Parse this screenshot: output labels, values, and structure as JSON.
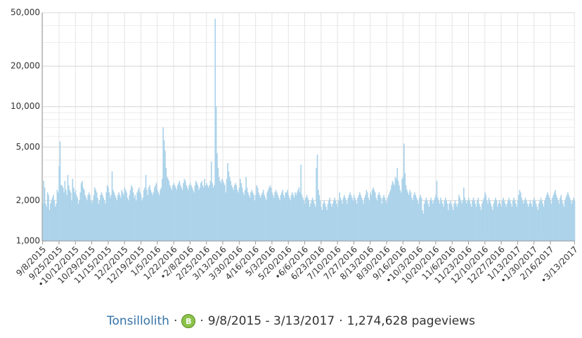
{
  "chart_data": {
    "type": "bar",
    "color": "#acd3ea",
    "log_scale": true,
    "grid": true,
    "ylim": [
      1000,
      50000
    ],
    "yticks": [
      {
        "value": 1000,
        "label": "1,000"
      },
      {
        "value": 2000,
        "label": "2,000"
      },
      {
        "value": 5000,
        "label": "5,000"
      },
      {
        "value": 10000,
        "label": "10,000"
      },
      {
        "value": 20000,
        "label": "20,000"
      },
      {
        "value": 50000,
        "label": "50,000"
      }
    ],
    "categories": [
      "9/8/2015",
      null,
      null,
      null,
      null,
      null,
      null,
      null,
      null,
      null,
      null,
      null,
      null,
      null,
      null,
      null,
      null,
      "9/25/2015",
      null,
      null,
      null,
      null,
      null,
      null,
      null,
      null,
      null,
      null,
      null,
      null,
      null,
      null,
      null,
      null,
      "•10/12/2015",
      null,
      null,
      null,
      null,
      null,
      null,
      null,
      null,
      null,
      null,
      null,
      null,
      null,
      null,
      null,
      null,
      "10/29/2015",
      null,
      null,
      null,
      null,
      null,
      null,
      null,
      null,
      null,
      null,
      null,
      null,
      null,
      null,
      null,
      null,
      "11/15/2015",
      null,
      null,
      null,
      null,
      null,
      null,
      null,
      null,
      null,
      null,
      null,
      null,
      null,
      null,
      null,
      null,
      "12/2/2015",
      null,
      null,
      null,
      null,
      null,
      null,
      null,
      null,
      null,
      null,
      null,
      null,
      null,
      null,
      null,
      null,
      "12/19/2015",
      null,
      null,
      null,
      null,
      null,
      null,
      null,
      null,
      null,
      null,
      null,
      null,
      null,
      null,
      null,
      null,
      "1/5/2016",
      null,
      null,
      null,
      null,
      null,
      null,
      null,
      null,
      null,
      null,
      null,
      null,
      null,
      null,
      null,
      null,
      "1/22/2016",
      null,
      null,
      null,
      null,
      null,
      null,
      null,
      null,
      null,
      null,
      null,
      null,
      null,
      null,
      null,
      null,
      "•2/8/2016",
      null,
      null,
      null,
      null,
      null,
      null,
      null,
      null,
      null,
      null,
      null,
      null,
      null,
      null,
      null,
      null,
      "2/25/2016",
      null,
      null,
      null,
      null,
      null,
      null,
      null,
      null,
      null,
      null,
      null,
      null,
      null,
      null,
      null,
      null,
      "3/13/2016",
      null,
      null,
      null,
      null,
      null,
      null,
      null,
      null,
      null,
      null,
      null,
      null,
      null,
      null,
      null,
      null,
      "3/30/2016",
      null,
      null,
      null,
      null,
      null,
      null,
      null,
      null,
      null,
      null,
      null,
      null,
      null,
      null,
      null,
      null,
      "4/16/2016",
      null,
      null,
      null,
      null,
      null,
      null,
      null,
      null,
      null,
      null,
      null,
      null,
      null,
      null,
      null,
      null,
      "5/3/2016",
      null,
      null,
      null,
      null,
      null,
      null,
      null,
      null,
      null,
      null,
      null,
      null,
      null,
      null,
      null,
      null,
      "5/20/2016",
      null,
      null,
      null,
      null,
      null,
      null,
      null,
      null,
      null,
      null,
      null,
      null,
      null,
      null,
      null,
      null,
      "•6/6/2016",
      null,
      null,
      null,
      null,
      null,
      null,
      null,
      null,
      null,
      null,
      null,
      null,
      null,
      null,
      null,
      null,
      "6/23/2016",
      null,
      null,
      null,
      null,
      null,
      null,
      null,
      null,
      null,
      null,
      null,
      null,
      null,
      null,
      null,
      null,
      "7/10/2016",
      null,
      null,
      null,
      null,
      null,
      null,
      null,
      null,
      null,
      null,
      null,
      null,
      null,
      null,
      null,
      null,
      "7/27/2016",
      null,
      null,
      null,
      null,
      null,
      null,
      null,
      null,
      null,
      null,
      null,
      null,
      null,
      null,
      null,
      null,
      "8/13/2016",
      null,
      null,
      null,
      null,
      null,
      null,
      null,
      null,
      null,
      null,
      null,
      null,
      null,
      null,
      null,
      null,
      "8/30/2016",
      null,
      null,
      null,
      null,
      null,
      null,
      null,
      null,
      null,
      null,
      null,
      null,
      null,
      null,
      null,
      null,
      "9/16/2016",
      null,
      null,
      null,
      null,
      null,
      null,
      null,
      null,
      null,
      null,
      null,
      null,
      null,
      null,
      null,
      null,
      "•10/3/2016",
      null,
      null,
      null,
      null,
      null,
      null,
      null,
      null,
      null,
      null,
      null,
      null,
      null,
      null,
      null,
      null,
      "10/20/2016",
      null,
      null,
      null,
      null,
      null,
      null,
      null,
      null,
      null,
      null,
      null,
      null,
      null,
      null,
      null,
      null,
      "11/6/2016",
      null,
      null,
      null,
      null,
      null,
      null,
      null,
      null,
      null,
      null,
      null,
      null,
      null,
      null,
      null,
      null,
      "11/23/2016",
      null,
      null,
      null,
      null,
      null,
      null,
      null,
      null,
      null,
      null,
      null,
      null,
      null,
      null,
      null,
      null,
      "12/10/2016",
      null,
      null,
      null,
      null,
      null,
      null,
      null,
      null,
      null,
      null,
      null,
      null,
      null,
      null,
      null,
      null,
      "12/27/2016",
      null,
      null,
      null,
      null,
      null,
      null,
      null,
      null,
      null,
      null,
      null,
      null,
      null,
      null,
      null,
      null,
      "1/13/2017",
      null,
      null,
      null,
      null,
      null,
      null,
      null,
      null,
      null,
      null,
      null,
      null,
      null,
      null,
      null,
      null,
      "•1/30/2017",
      null,
      null,
      null,
      null,
      null,
      null,
      null,
      null,
      null,
      null,
      null,
      null,
      null,
      null,
      null,
      null,
      "2/16/2017",
      null,
      null,
      null,
      null,
      null,
      null,
      null,
      null,
      null,
      null,
      null,
      null,
      null,
      null,
      null,
      null,
      null,
      null,
      null,
      null,
      null,
      null,
      null,
      null,
      "•3/13/2017"
    ],
    "values": [
      1900,
      2800,
      2500,
      1900,
      1800,
      2300,
      2200,
      1700,
      1900,
      2000,
      2100,
      2200,
      2000,
      1800,
      1900,
      2400,
      2300,
      3600,
      5500,
      2600,
      2600,
      2500,
      2300,
      2800,
      2400,
      2200,
      3100,
      2600,
      2400,
      2300,
      2000,
      2900,
      2500,
      2300,
      2400,
      2200,
      2100,
      1900,
      2000,
      2300,
      2700,
      2800,
      2500,
      2400,
      2200,
      2100,
      2000,
      2200,
      2300,
      2200,
      2000,
      1900,
      2000,
      2200,
      2500,
      2400,
      2300,
      2100,
      1900,
      2000,
      2200,
      2300,
      2200,
      2100,
      2000,
      1900,
      2300,
      2600,
      2500,
      2300,
      2100,
      2200,
      3300,
      2400,
      2300,
      2200,
      2100,
      2000,
      2200,
      2300,
      2200,
      2100,
      2400,
      2300,
      2200,
      2500,
      2400,
      2300,
      2100,
      2000,
      2200,
      2400,
      2600,
      2500,
      2300,
      2100,
      2200,
      2000,
      2300,
      2400,
      2500,
      2300,
      2200,
      2000,
      2100,
      2400,
      2500,
      3100,
      2400,
      2200,
      2500,
      2600,
      2400,
      2300,
      2200,
      2300,
      2500,
      2600,
      2700,
      2400,
      2300,
      2200,
      2400,
      2500,
      2900,
      7000,
      5600,
      4700,
      3500,
      3000,
      2900,
      2800,
      2600,
      2500,
      2400,
      2600,
      2700,
      2600,
      2500,
      2400,
      2600,
      2700,
      2800,
      2600,
      2500,
      2400,
      2700,
      2900,
      2800,
      2600,
      2500,
      2400,
      2600,
      2700,
      2600,
      2500,
      2400,
      2300,
      2600,
      2800,
      2700,
      2600,
      2400,
      2500,
      2700,
      2800,
      2600,
      2500,
      2900,
      2600,
      2700,
      2600,
      2500,
      2600,
      2800,
      3900,
      2700,
      2500,
      2600,
      45000,
      10000,
      4500,
      3500,
      3000,
      2800,
      2700,
      2900,
      2800,
      2700,
      2600,
      2300,
      2900,
      3800,
      3300,
      3000,
      2800,
      2600,
      2500,
      2400,
      2600,
      2700,
      2600,
      2400,
      2300,
      2500,
      2900,
      2700,
      2500,
      2300,
      2200,
      2400,
      3000,
      2500,
      2300,
      2200,
      2100,
      2300,
      2400,
      2300,
      2200,
      2000,
      2200,
      2600,
      2500,
      2300,
      2200,
      2100,
      2200,
      2300,
      2400,
      2200,
      2100,
      2000,
      2300,
      2400,
      2500,
      2600,
      2500,
      2300,
      2200,
      2100,
      2300,
      2400,
      2300,
      2200,
      2100,
      2000,
      2200,
      2300,
      2400,
      2200,
      2100,
      2300,
      2300,
      2400,
      2200,
      2100,
      2000,
      2200,
      2300,
      2200,
      2100,
      2300,
      2200,
      2300,
      2400,
      2500,
      2300,
      3700,
      2200,
      2100,
      2000,
      1900,
      2100,
      2200,
      2100,
      2000,
      1800,
      1900,
      2000,
      2100,
      2000,
      1900,
      1800,
      3500,
      4400,
      2400,
      2200,
      2000,
      1800,
      1700,
      1900,
      2000,
      1900,
      1800,
      1700,
      1900,
      2000,
      2100,
      1900,
      1800,
      1900,
      2000,
      2100,
      2000,
      1900,
      1800,
      2000,
      2300,
      2100,
      2000,
      1900,
      2100,
      2200,
      2100,
      2000,
      1900,
      2100,
      2200,
      2300,
      2200,
      2100,
      2000,
      2200,
      2100,
      2000,
      1900,
      2100,
      2200,
      2300,
      2200,
      2100,
      2000,
      1900,
      2100,
      2200,
      2400,
      2300,
      2100,
      2000,
      2300,
      2200,
      2400,
      2500,
      2400,
      2300,
      2100,
      2000,
      2200,
      2300,
      2200,
      2100,
      1900,
      2100,
      2200,
      2100,
      2000,
      1900,
      2100,
      2200,
      2300,
      2400,
      2600,
      2800,
      2700,
      2600,
      3000,
      2900,
      3500,
      2800,
      2600,
      2400,
      2300,
      2900,
      3000,
      5300,
      3200,
      2600,
      2400,
      2300,
      2200,
      2400,
      2300,
      2100,
      2000,
      2200,
      2300,
      2200,
      2100,
      2000,
      1900,
      2100,
      2200,
      2100,
      1700,
      1600,
      1900,
      2000,
      2100,
      2000,
      1900,
      1800,
      2000,
      2100,
      2000,
      1900,
      2000,
      2100,
      2200,
      2800,
      2100,
      2000,
      1900,
      2100,
      2000,
      1900,
      1800,
      2000,
      2100,
      2000,
      1900,
      1700,
      1900,
      2000,
      1900,
      1800,
      1700,
      1900,
      2000,
      1900,
      1800,
      1900,
      2200,
      2100,
      2000,
      1900,
      2000,
      2500,
      2100,
      2000,
      1900,
      2000,
      2100,
      2000,
      1900,
      1800,
      2000,
      2100,
      2000,
      1900,
      1800,
      2000,
      2100,
      1900,
      1800,
      1700,
      1900,
      2000,
      2100,
      2300,
      2200,
      2000,
      1900,
      2100,
      2000,
      1900,
      1800,
      1700,
      1900,
      2000,
      2100,
      2000,
      1800,
      1900,
      2000,
      1900,
      1800,
      2000,
      2100,
      2000,
      1900,
      1800,
      1900,
      2000,
      2100,
      2000,
      1900,
      1800,
      2000,
      2100,
      2000,
      1900,
      1800,
      2000,
      2200,
      2400,
      2300,
      2100,
      2000,
      1900,
      2000,
      2100,
      2000,
      1900,
      1800,
      1900,
      2000,
      1900,
      1800,
      2000,
      2100,
      2000,
      1900,
      1800,
      1700,
      1900,
      2000,
      2100,
      2000,
      1900,
      1800,
      2000,
      2100,
      2200,
      2300,
      2200,
      2100,
      2000,
      1900,
      2100,
      2200,
      2300,
      2400,
      2200,
      2100,
      2000,
      1900,
      2100,
      2200,
      2000,
      1900,
      1800,
      2000,
      2100,
      2200,
      2300,
      2200,
      2100,
      2000,
      1900,
      2000,
      2100,
      2000
    ]
  },
  "footer": {
    "article": "Tonsillolith",
    "separator": "·",
    "badge": "B",
    "date_range": "9/8/2015 - 3/13/2017",
    "pageviews": "1,274,628 pageviews"
  }
}
